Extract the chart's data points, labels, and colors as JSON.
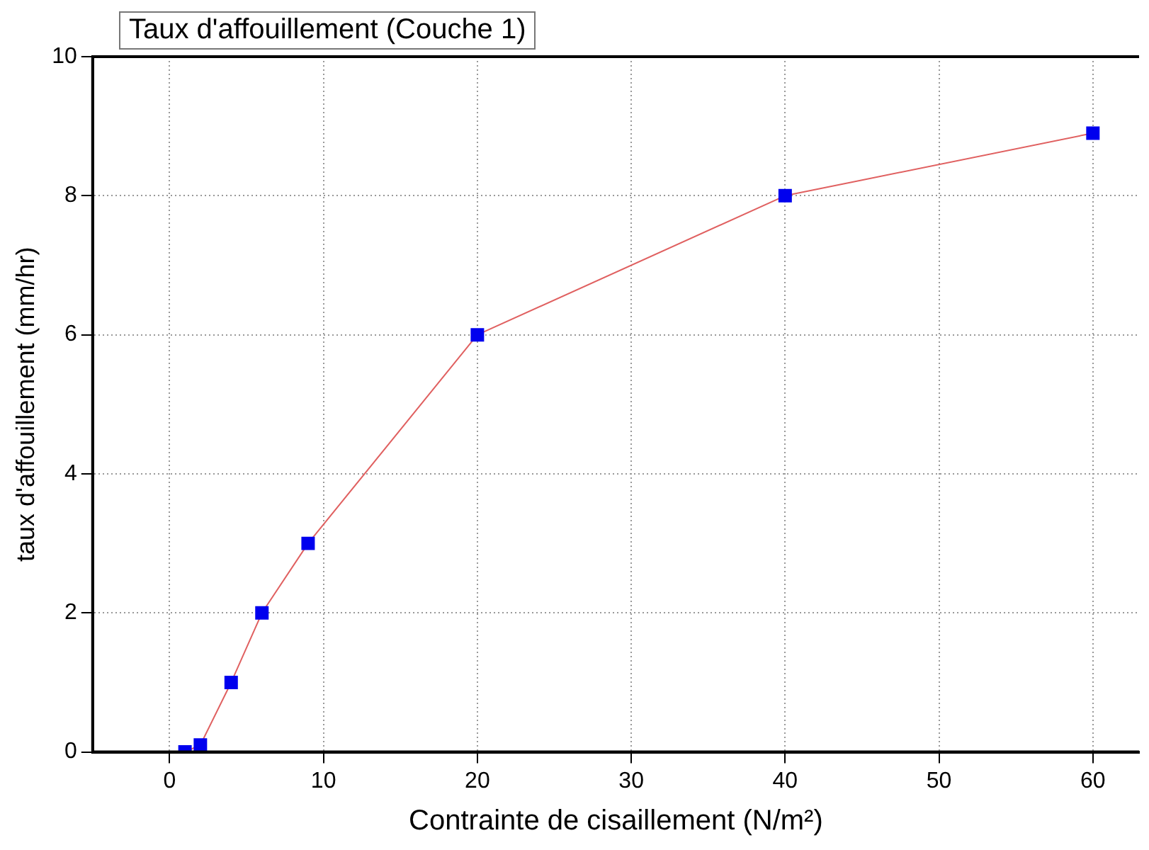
{
  "chart_data": {
    "type": "line",
    "title": "Taux d'affouillement (Couche 1)",
    "xlabel": "Contrainte de cisaillement (N/m²)",
    "ylabel": "taux d'affouillement (mm/hr)",
    "x": [
      1,
      2,
      4,
      6,
      9,
      20,
      40,
      60
    ],
    "series": [
      {
        "color": "#0000ee",
        "values": [
          0,
          0.1,
          1,
          2,
          3,
          6,
          8,
          8.9
        ]
      }
    ],
    "xlim": [
      -5,
      63
    ],
    "xticks": [
      0,
      10,
      20,
      30,
      40,
      50,
      60
    ],
    "ylim": [
      0,
      10
    ],
    "yticks": [
      0,
      2,
      4,
      6,
      8,
      10
    ],
    "grid": true,
    "legend": false,
    "marker": "square",
    "line_style": "solid"
  }
}
